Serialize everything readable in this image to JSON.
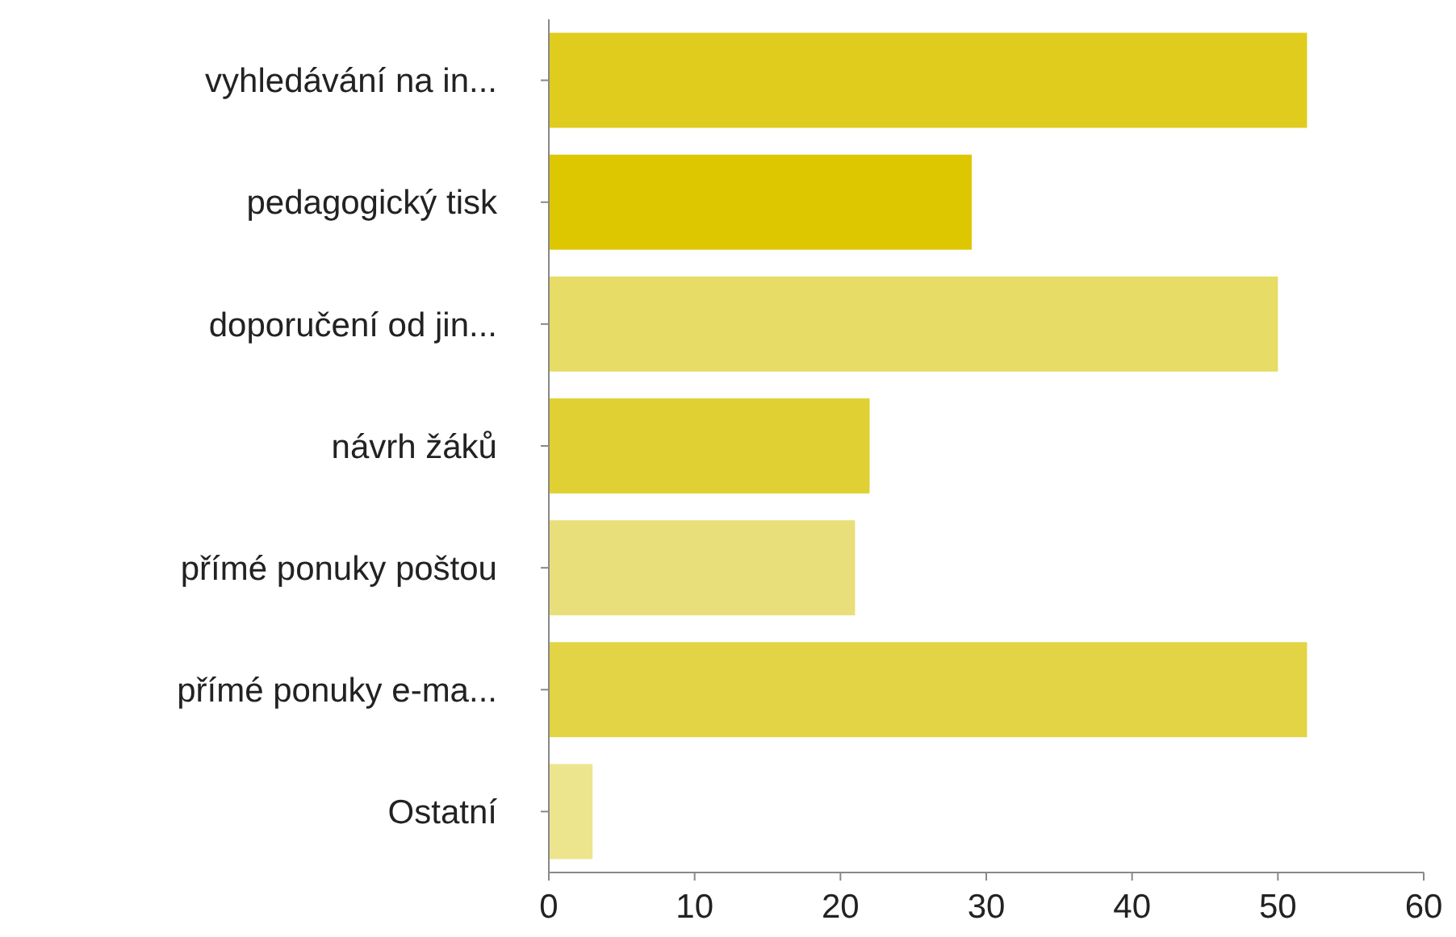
{
  "chart_data": {
    "type": "bar",
    "orientation": "horizontal",
    "categories": [
      "vyhledávání na in...",
      "pedagogický tisk",
      "doporučení od jin...",
      "návrh žáků",
      "přímé ponuky poštou",
      "přímé ponuky e-ma...",
      "Ostatní"
    ],
    "values": [
      52,
      29,
      50,
      22,
      21,
      52,
      3
    ],
    "colors": [
      "#dfcc1c",
      "#dcc700",
      "#e6dc66",
      "#e0d033",
      "#e8df7a",
      "#e2d444",
      "#ede48e"
    ],
    "xlim": [
      0,
      60
    ],
    "xticks": [
      0,
      10,
      20,
      30,
      40,
      50,
      60
    ],
    "grid": false
  }
}
